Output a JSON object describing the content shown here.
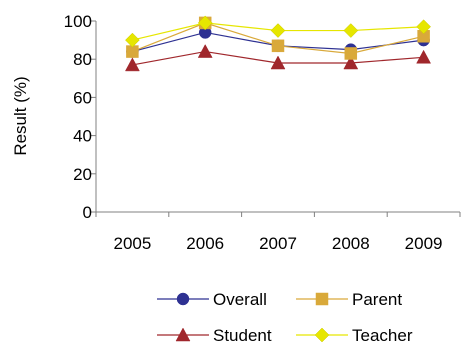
{
  "chart_data": {
    "type": "line",
    "title": "",
    "xlabel": "",
    "ylabel": "Result (%)",
    "ylim": [
      0,
      100
    ],
    "yticks": [
      0,
      20,
      40,
      60,
      80,
      100
    ],
    "categories": [
      "2005",
      "2006",
      "2007",
      "2008",
      "2009"
    ],
    "grid": false,
    "legend_position": "bottom",
    "series": [
      {
        "name": "Overall",
        "marker": "circle",
        "color": "#2E3192",
        "values": [
          84,
          94,
          87,
          85,
          90
        ]
      },
      {
        "name": "Parent",
        "marker": "square",
        "color": "#D9A93A",
        "values": [
          84,
          99,
          87,
          83,
          92
        ]
      },
      {
        "name": "Student",
        "marker": "triangle",
        "color": "#A0272C",
        "values": [
          77,
          84,
          78,
          78,
          81
        ]
      },
      {
        "name": "Teacher",
        "marker": "diamond",
        "color": "#E6E600",
        "values": [
          90,
          99,
          95,
          95,
          97
        ]
      }
    ]
  }
}
